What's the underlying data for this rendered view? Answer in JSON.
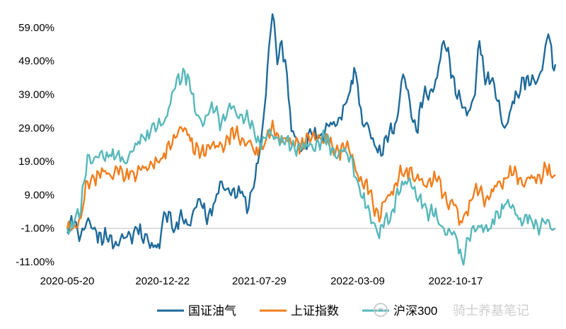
{
  "chart_data": {
    "type": "line",
    "x_start": "2020-05-20",
    "x_end": "2023-05-31",
    "ylim": [
      -11,
      63
    ],
    "y_ticks": [
      "59.00%",
      "49.00%",
      "39.00%",
      "29.00%",
      "19.00%",
      "9.00%",
      "-1.00%",
      "-11.00%"
    ],
    "y_tick_values": [
      59,
      49,
      39,
      29,
      19,
      9,
      -1,
      -11
    ],
    "x_ticks": [
      "2020-05-20",
      "2020-12-22",
      "2021-07-29",
      "2022-03-09",
      "2022-10-17"
    ],
    "series": [
      {
        "name": "国证油气",
        "color": "#1f6a9a",
        "points": [
          [
            "2020-05-20",
            -2
          ],
          [
            "2020-06-05",
            1
          ],
          [
            "2020-06-20",
            -3
          ],
          [
            "2020-07-10",
            1
          ],
          [
            "2020-07-25",
            -2
          ],
          [
            "2020-08-10",
            -5
          ],
          [
            "2020-08-25",
            -3
          ],
          [
            "2020-09-10",
            -6
          ],
          [
            "2020-09-25",
            -4
          ],
          [
            "2020-10-10",
            -3
          ],
          [
            "2020-10-25",
            -1
          ],
          [
            "2020-11-05",
            -4
          ],
          [
            "2020-11-20",
            -5
          ],
          [
            "2020-12-05",
            -6
          ],
          [
            "2020-12-15",
            -7
          ],
          [
            "2020-12-22",
            1
          ],
          [
            "2021-01-05",
            4
          ],
          [
            "2021-01-20",
            -1
          ],
          [
            "2021-02-05",
            2
          ],
          [
            "2021-02-20",
            0
          ],
          [
            "2021-03-05",
            5
          ],
          [
            "2021-03-20",
            6
          ],
          [
            "2021-04-05",
            3
          ],
          [
            "2021-04-20",
            7
          ],
          [
            "2021-05-05",
            13
          ],
          [
            "2021-05-20",
            11
          ],
          [
            "2021-06-05",
            8
          ],
          [
            "2021-06-20",
            10
          ],
          [
            "2021-07-05",
            5
          ],
          [
            "2021-07-20",
            14
          ],
          [
            "2021-07-29",
            21
          ],
          [
            "2021-08-10",
            35
          ],
          [
            "2021-08-20",
            53
          ],
          [
            "2021-08-28",
            63
          ],
          [
            "2021-09-08",
            48
          ],
          [
            "2021-09-18",
            55
          ],
          [
            "2021-09-30",
            45
          ],
          [
            "2021-10-10",
            28
          ],
          [
            "2021-10-25",
            25
          ],
          [
            "2021-11-10",
            23
          ],
          [
            "2021-11-25",
            27
          ],
          [
            "2021-12-10",
            26
          ],
          [
            "2021-12-25",
            28
          ],
          [
            "2022-01-10",
            30
          ],
          [
            "2022-01-25",
            32
          ],
          [
            "2022-02-08",
            36
          ],
          [
            "2022-02-20",
            40
          ],
          [
            "2022-03-01",
            47
          ],
          [
            "2022-03-09",
            42
          ],
          [
            "2022-03-20",
            30
          ],
          [
            "2022-04-05",
            28
          ],
          [
            "2022-04-20",
            23
          ],
          [
            "2022-05-05",
            21
          ],
          [
            "2022-05-20",
            28
          ],
          [
            "2022-06-05",
            31
          ],
          [
            "2022-06-20",
            45
          ],
          [
            "2022-07-05",
            37
          ],
          [
            "2022-07-20",
            28
          ],
          [
            "2022-08-05",
            38
          ],
          [
            "2022-08-20",
            40
          ],
          [
            "2022-09-05",
            44
          ],
          [
            "2022-09-20",
            55
          ],
          [
            "2022-09-30",
            53
          ],
          [
            "2022-10-17",
            39
          ],
          [
            "2022-11-01",
            35
          ],
          [
            "2022-11-15",
            34
          ],
          [
            "2022-11-30",
            39
          ],
          [
            "2022-12-10",
            55
          ],
          [
            "2022-12-20",
            46
          ],
          [
            "2023-01-05",
            43
          ],
          [
            "2023-01-20",
            37
          ],
          [
            "2023-02-05",
            29
          ],
          [
            "2023-02-20",
            35
          ],
          [
            "2023-03-05",
            39
          ],
          [
            "2023-03-20",
            44
          ],
          [
            "2023-04-05",
            42
          ],
          [
            "2023-04-20",
            43
          ],
          [
            "2023-05-05",
            50
          ],
          [
            "2023-05-15",
            57
          ],
          [
            "2023-05-25",
            47
          ],
          [
            "2023-05-31",
            48
          ]
        ]
      },
      {
        "name": "上证指数",
        "color": "#f07f1e",
        "points": [
          [
            "2020-05-20",
            -1
          ],
          [
            "2020-06-05",
            0
          ],
          [
            "2020-06-20",
            2
          ],
          [
            "2020-07-05",
            13
          ],
          [
            "2020-07-20",
            14
          ],
          [
            "2020-08-10",
            16
          ],
          [
            "2020-08-25",
            15
          ],
          [
            "2020-09-10",
            17
          ],
          [
            "2020-09-25",
            13
          ],
          [
            "2020-10-10",
            16
          ],
          [
            "2020-10-25",
            15
          ],
          [
            "2020-11-10",
            17
          ],
          [
            "2020-11-25",
            19
          ],
          [
            "2020-12-10",
            19
          ],
          [
            "2020-12-22",
            20
          ],
          [
            "2021-01-05",
            25
          ],
          [
            "2021-01-20",
            26
          ],
          [
            "2021-02-10",
            29
          ],
          [
            "2021-02-20",
            27
          ],
          [
            "2021-03-05",
            21
          ],
          [
            "2021-03-20",
            22
          ],
          [
            "2021-04-05",
            24
          ],
          [
            "2021-04-20",
            23
          ],
          [
            "2021-05-05",
            24
          ],
          [
            "2021-05-20",
            26
          ],
          [
            "2021-06-05",
            27
          ],
          [
            "2021-06-20",
            26
          ],
          [
            "2021-07-05",
            25
          ],
          [
            "2021-07-20",
            21
          ],
          [
            "2021-07-29",
            23
          ],
          [
            "2021-08-10",
            24
          ],
          [
            "2021-08-25",
            28
          ],
          [
            "2021-09-10",
            27
          ],
          [
            "2021-09-25",
            26
          ],
          [
            "2021-10-10",
            24
          ],
          [
            "2021-10-25",
            25
          ],
          [
            "2021-11-10",
            24
          ],
          [
            "2021-11-25",
            26
          ],
          [
            "2021-12-10",
            27
          ],
          [
            "2021-12-25",
            25
          ],
          [
            "2022-01-10",
            24
          ],
          [
            "2022-01-25",
            22
          ],
          [
            "2022-02-10",
            23
          ],
          [
            "2022-02-25",
            21
          ],
          [
            "2022-03-09",
            15
          ],
          [
            "2022-03-20",
            12
          ],
          [
            "2022-04-05",
            10
          ],
          [
            "2022-04-20",
            5
          ],
          [
            "2022-04-27",
            1
          ],
          [
            "2022-05-10",
            7
          ],
          [
            "2022-05-25",
            10
          ],
          [
            "2022-06-10",
            14
          ],
          [
            "2022-06-25",
            16
          ],
          [
            "2022-07-05",
            17
          ],
          [
            "2022-07-20",
            14
          ],
          [
            "2022-08-05",
            12
          ],
          [
            "2022-08-20",
            14
          ],
          [
            "2022-09-05",
            13
          ],
          [
            "2022-09-20",
            9
          ],
          [
            "2022-10-05",
            7
          ],
          [
            "2022-10-17",
            6
          ],
          [
            "2022-10-25",
            0
          ],
          [
            "2022-11-10",
            4
          ],
          [
            "2022-11-25",
            8
          ],
          [
            "2022-12-10",
            10
          ],
          [
            "2022-12-25",
            8
          ],
          [
            "2023-01-10",
            10
          ],
          [
            "2023-01-25",
            13
          ],
          [
            "2023-02-10",
            14
          ],
          [
            "2023-02-25",
            15
          ],
          [
            "2023-03-10",
            14
          ],
          [
            "2023-03-25",
            13
          ],
          [
            "2023-04-10",
            14
          ],
          [
            "2023-04-25",
            15
          ],
          [
            "2023-05-10",
            17
          ],
          [
            "2023-05-20",
            15
          ],
          [
            "2023-05-31",
            15
          ]
        ]
      },
      {
        "name": "沪深300",
        "color": "#57b8ba",
        "points": [
          [
            "2020-05-20",
            -1
          ],
          [
            "2020-06-05",
            1
          ],
          [
            "2020-06-20",
            4
          ],
          [
            "2020-07-05",
            21
          ],
          [
            "2020-07-20",
            20
          ],
          [
            "2020-08-10",
            20
          ],
          [
            "2020-08-25",
            21
          ],
          [
            "2020-09-10",
            21
          ],
          [
            "2020-09-25",
            19
          ],
          [
            "2020-10-10",
            22
          ],
          [
            "2020-10-25",
            24
          ],
          [
            "2020-11-10",
            26
          ],
          [
            "2020-11-25",
            28
          ],
          [
            "2020-12-10",
            29
          ],
          [
            "2020-12-22",
            30
          ],
          [
            "2021-01-05",
            35
          ],
          [
            "2021-01-20",
            41
          ],
          [
            "2021-02-10",
            46
          ],
          [
            "2021-02-20",
            44
          ],
          [
            "2021-03-05",
            34
          ],
          [
            "2021-03-20",
            31
          ],
          [
            "2021-04-05",
            33
          ],
          [
            "2021-04-20",
            34
          ],
          [
            "2021-05-05",
            31
          ],
          [
            "2021-05-20",
            35
          ],
          [
            "2021-06-05",
            34
          ],
          [
            "2021-06-20",
            33
          ],
          [
            "2021-07-05",
            31
          ],
          [
            "2021-07-20",
            26
          ],
          [
            "2021-07-29",
            25
          ],
          [
            "2021-08-10",
            26
          ],
          [
            "2021-08-25",
            27
          ],
          [
            "2021-09-10",
            26
          ],
          [
            "2021-09-25",
            24
          ],
          [
            "2021-10-10",
            23
          ],
          [
            "2021-10-25",
            24
          ],
          [
            "2021-11-10",
            23
          ],
          [
            "2021-11-25",
            24
          ],
          [
            "2021-12-10",
            25
          ],
          [
            "2021-12-25",
            25
          ],
          [
            "2022-01-10",
            23
          ],
          [
            "2022-01-25",
            21
          ],
          [
            "2022-02-10",
            22
          ],
          [
            "2022-02-25",
            20
          ],
          [
            "2022-03-09",
            13
          ],
          [
            "2022-03-20",
            8
          ],
          [
            "2022-04-05",
            4
          ],
          [
            "2022-04-20",
            -1
          ],
          [
            "2022-04-27",
            -4
          ],
          [
            "2022-05-10",
            2
          ],
          [
            "2022-05-25",
            4
          ],
          [
            "2022-06-10",
            9
          ],
          [
            "2022-06-25",
            13
          ],
          [
            "2022-07-05",
            14
          ],
          [
            "2022-07-20",
            8
          ],
          [
            "2022-08-05",
            6
          ],
          [
            "2022-08-20",
            4
          ],
          [
            "2022-09-05",
            2
          ],
          [
            "2022-09-20",
            -1
          ],
          [
            "2022-10-05",
            -2
          ],
          [
            "2022-10-17",
            -3
          ],
          [
            "2022-10-31",
            -10
          ],
          [
            "2022-11-15",
            -4
          ],
          [
            "2022-11-30",
            -2
          ],
          [
            "2022-12-15",
            0
          ],
          [
            "2023-01-05",
            -1
          ],
          [
            "2023-01-20",
            4
          ],
          [
            "2023-02-05",
            6
          ],
          [
            "2023-02-20",
            5
          ],
          [
            "2023-03-05",
            3
          ],
          [
            "2023-03-20",
            1
          ],
          [
            "2023-04-05",
            2
          ],
          [
            "2023-04-20",
            0
          ],
          [
            "2023-05-05",
            1
          ],
          [
            "2023-05-20",
            -1
          ],
          [
            "2023-05-31",
            -1
          ]
        ]
      }
    ],
    "legend_position": "bottom",
    "grid": false
  },
  "watermark": {
    "text": "骑士养基笔记",
    "icon": "snowball-logo-icon",
    "color": "#c9c9c9"
  }
}
